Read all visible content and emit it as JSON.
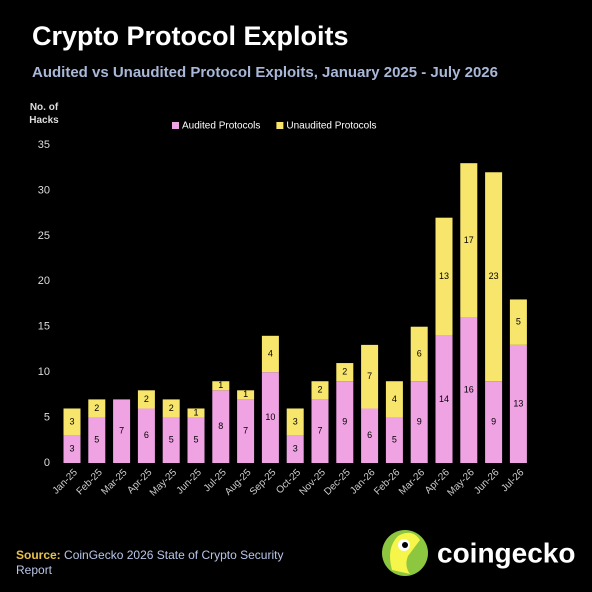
{
  "chart_data": {
    "type": "stacked_bar",
    "title": "Crypto Protocol Exploits",
    "subtitle": "Audited vs Unaudited Protocol Exploits, January 2025 - July 2026",
    "y_label": "No. of Hacks",
    "categories": [
      "Jan-25",
      "Feb-25",
      "Mar-25",
      "Apr-25",
      "May-25",
      "Jun-25",
      "Jul-25",
      "Aug-25",
      "Sep-25",
      "Oct-25",
      "Nov-25",
      "Dec-25",
      "Jan-26",
      "Feb-26",
      "Mar-26",
      "Apr-26",
      "May-26",
      "Jun-26",
      "Jul-26"
    ],
    "series": [
      {
        "name": "Audited Protocols",
        "color": "#f0a3e3",
        "values": [
          3,
          5,
          7,
          6,
          5,
          5,
          8,
          7,
          10,
          3,
          7,
          9,
          6,
          5,
          9,
          14,
          16,
          9,
          13
        ]
      },
      {
        "name": "Unaudited Protocols",
        "color": "#f7e66b",
        "values": [
          3,
          2,
          0,
          2,
          2,
          1,
          1,
          1,
          4,
          3,
          2,
          2,
          7,
          4,
          6,
          13,
          17,
          23,
          5
        ]
      }
    ],
    "ylim": [
      0,
      35
    ],
    "yticks": [
      0,
      5,
      10,
      15,
      20,
      25,
      30,
      35
    ],
    "source": {
      "label": "Source:",
      "text": "CoinGecko 2026 State of Crypto Security Report"
    },
    "brand": "coingecko"
  }
}
